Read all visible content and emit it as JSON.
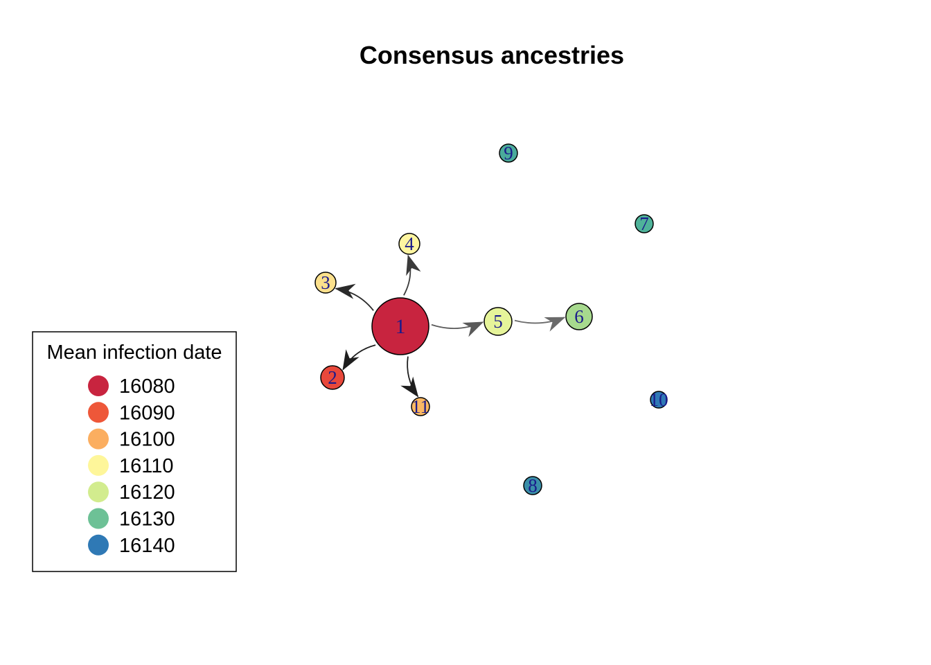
{
  "title": "Consensus ancestries",
  "legend": {
    "title": "Mean infection date",
    "entries": [
      {
        "label": "16080",
        "color": "#c8243f"
      },
      {
        "label": "16090",
        "color": "#ee5739"
      },
      {
        "label": "16100",
        "color": "#fbae60"
      },
      {
        "label": "16110",
        "color": "#fef69a"
      },
      {
        "label": "16120",
        "color": "#d2ec8e"
      },
      {
        "label": "16130",
        "color": "#6dc196"
      },
      {
        "label": "16140",
        "color": "#2f79b5"
      }
    ]
  },
  "nodes": [
    {
      "id": "1",
      "label": "1",
      "color": "#c8243f"
    },
    {
      "id": "2",
      "label": "2",
      "color": "#e8483b"
    },
    {
      "id": "3",
      "label": "3",
      "color": "#fbe08c"
    },
    {
      "id": "4",
      "label": "4",
      "color": "#fef5a0"
    },
    {
      "id": "5",
      "label": "5",
      "color": "#e6f49a"
    },
    {
      "id": "6",
      "label": "6",
      "color": "#a7d98e"
    },
    {
      "id": "7",
      "label": "7",
      "color": "#4fb39a"
    },
    {
      "id": "8",
      "label": "8",
      "color": "#3a8ea9"
    },
    {
      "id": "9",
      "label": "9",
      "color": "#4aaa9b"
    },
    {
      "id": "10",
      "label": "10",
      "color": "#2f79b5"
    },
    {
      "id": "11",
      "label": "11",
      "color": "#fbb864"
    }
  ],
  "edges": [
    {
      "from": "1",
      "to": "2",
      "color": "#1e1e1e"
    },
    {
      "from": "1",
      "to": "3",
      "color": "#2a2a2a"
    },
    {
      "from": "1",
      "to": "4",
      "color": "#3a3a3a"
    },
    {
      "from": "1",
      "to": "5",
      "color": "#5a5a5a"
    },
    {
      "from": "1",
      "to": "11",
      "color": "#1e1e1e"
    },
    {
      "from": "5",
      "to": "6",
      "color": "#6a6a6a"
    }
  ]
}
